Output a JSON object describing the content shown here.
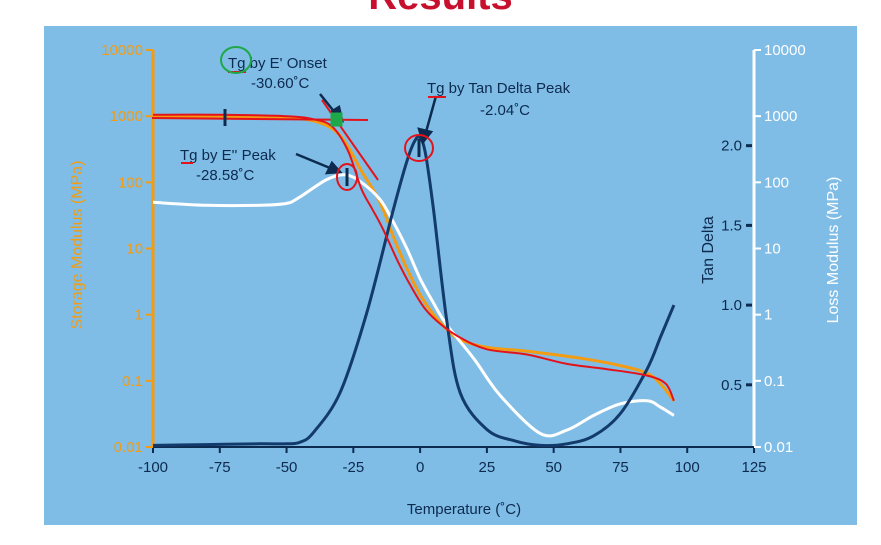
{
  "title": "Results",
  "colors": {
    "panel": "#7fbde6",
    "storage": "#f39c12",
    "loss": "#ffffff",
    "tan": "#123a6b",
    "markup": "#e3131b",
    "circle_green": "#1fa84a"
  },
  "chart_data": {
    "type": "line",
    "xlabel": "Temperature (˚C)",
    "ylabel_left": "Storage Modulus (MPa)",
    "ylabel_tan": "Tan Delta",
    "ylabel_right": "Loss Modulus (MPa)",
    "xlim": [
      -100,
      125
    ],
    "x_ticks": [
      "-100",
      "-75",
      "-50",
      "-25",
      "0",
      "25",
      "50",
      "75",
      "100",
      "125"
    ],
    "x_tick_values": [
      -100,
      -75,
      -50,
      -25,
      0,
      25,
      50,
      75,
      100,
      125
    ],
    "left_scale": "log",
    "left_lim": [
      0.01,
      10000
    ],
    "left_ticks": [
      "0.01",
      "0.1",
      "1",
      "10",
      "100",
      "1000",
      "10000"
    ],
    "left_tick_values": [
      0.01,
      0.1,
      1,
      10,
      100,
      1000,
      10000
    ],
    "right_scale": "log",
    "right_lim": [
      0.01,
      10000
    ],
    "right_ticks": [
      "0.01",
      "0.1",
      "1",
      "10",
      "100",
      "1000",
      "10000"
    ],
    "right_tick_values": [
      0.01,
      0.1,
      1,
      10,
      100,
      1000,
      10000
    ],
    "tan_lim": [
      0.11,
      2.6
    ],
    "tan_ticks": [
      "0.5",
      "1.0",
      "1.5",
      "2.0"
    ],
    "tan_tick_values": [
      0.5,
      1.0,
      1.5,
      2.0
    ],
    "series": [
      {
        "key": "storage",
        "axis": "left",
        "color": "#f39c12",
        "x": [
          -100,
          -75,
          -50,
          -40,
          -33,
          -28,
          -22,
          -15,
          -10,
          -5,
          0,
          5,
          10,
          15,
          25,
          40,
          60,
          75,
          85,
          90,
          95
        ],
        "y": [
          1000,
          1000,
          950,
          850,
          650,
          400,
          150,
          50,
          15,
          5,
          2,
          1,
          0.6,
          0.42,
          0.32,
          0.28,
          0.22,
          0.17,
          0.13,
          0.09,
          0.05
        ]
      },
      {
        "key": "loss",
        "axis": "right",
        "color": "#ffffff",
        "x": [
          -100,
          -80,
          -60,
          -50,
          -45,
          -35,
          -28,
          -22,
          -15,
          -10,
          -5,
          0,
          5,
          10,
          20,
          30,
          45,
          55,
          65,
          75,
          85,
          90,
          95
        ],
        "y": [
          50,
          45,
          45,
          48,
          60,
          110,
          130,
          100,
          55,
          25,
          10,
          3.5,
          1.5,
          0.7,
          0.22,
          0.06,
          0.016,
          0.018,
          0.03,
          0.045,
          0.05,
          0.04,
          0.03
        ]
      },
      {
        "key": "tan",
        "axis": "tan",
        "color": "#123a6b",
        "x": [
          -100,
          -80,
          -60,
          -50,
          -45,
          -40,
          -30,
          -20,
          -10,
          -5,
          -2,
          0,
          2,
          5,
          10,
          15,
          25,
          35,
          45,
          55,
          65,
          75,
          85,
          90,
          95
        ],
        "y": [
          0.12,
          0.125,
          0.13,
          0.13,
          0.14,
          0.2,
          0.45,
          0.95,
          1.6,
          1.9,
          2.03,
          2.05,
          1.95,
          1.6,
          0.9,
          0.45,
          0.22,
          0.15,
          0.12,
          0.13,
          0.18,
          0.32,
          0.6,
          0.8,
          1.0
        ]
      },
      {
        "key": "markup",
        "axis": "left",
        "color": "#e3131b",
        "x": [
          -100,
          -75,
          -50,
          -40,
          -33,
          -27,
          -22,
          -18,
          -14,
          -8,
          -3,
          2,
          8,
          15,
          25,
          40,
          55,
          70,
          85,
          92,
          95
        ],
        "y": [
          1050,
          1050,
          1000,
          900,
          700,
          300,
          80,
          40,
          20,
          6,
          2.5,
          1.2,
          0.7,
          0.45,
          0.3,
          0.25,
          0.18,
          0.15,
          0.12,
          0.09,
          0.05
        ]
      }
    ],
    "annotations": [
      {
        "key": "onset",
        "line1": "Tg by E' Onset",
        "line2": "-30.60˚C",
        "at_x": -30.6,
        "at_y": 1000
      },
      {
        "key": "epp",
        "line1": "Tg by E'' Peak",
        "line2": "-28.58˚C",
        "at_x": -28.58,
        "at_y": 130
      },
      {
        "key": "tdp",
        "line1": "Tg by Tan Delta Peak",
        "line2": "-2.04˚C",
        "at_x": -2.04,
        "at_y_tan": 2.05
      }
    ]
  }
}
